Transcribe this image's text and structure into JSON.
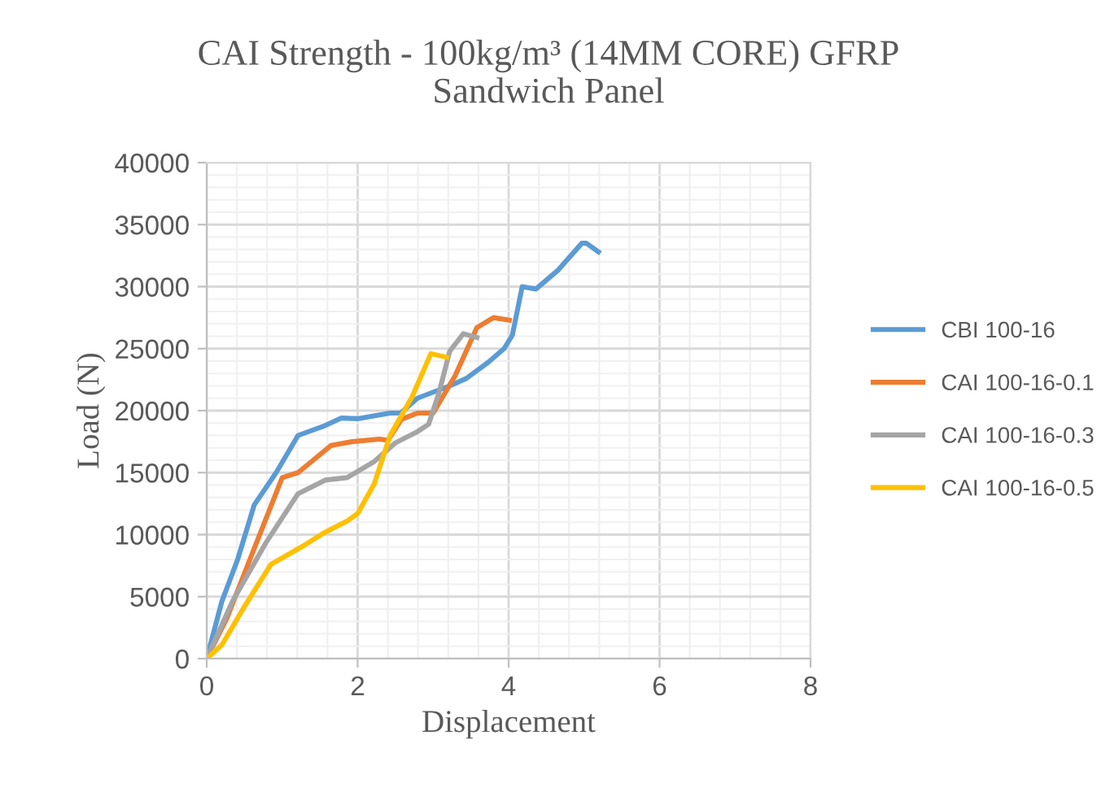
{
  "chart_data": {
    "type": "line",
    "title": "CAI Strength - 100kg/m³ (14MM CORE) GFRP\nSandwich Panel",
    "xlabel": "Displacement",
    "ylabel": "Load (N)",
    "xlim": [
      0,
      8
    ],
    "xticks": [
      0,
      2,
      4,
      6,
      8
    ],
    "ylim": [
      0,
      40000
    ],
    "yticks": [
      0,
      5000,
      10000,
      15000,
      20000,
      25000,
      30000,
      35000,
      40000
    ],
    "grid": true,
    "legend": "right",
    "marker": "none",
    "line_style": "solid",
    "series": [
      {
        "name": "CBI 100-16",
        "color": "#5b9bd5",
        "x": [
          0,
          0.2,
          0.41,
          0.63,
          0.92,
          1.21,
          1.57,
          1.78,
          2.0,
          2.43,
          2.57,
          2.79,
          3.22,
          3.44,
          3.73,
          3.94,
          4.05,
          4.18,
          4.36,
          4.65,
          4.97,
          5.03,
          5.19
        ],
        "values": [
          0,
          4600,
          8000,
          12400,
          15000,
          18000,
          18800,
          19400,
          19350,
          19800,
          19800,
          21000,
          22000,
          22600,
          23900,
          25000,
          26100,
          30000,
          29800,
          31300,
          33500,
          33500,
          32800
        ]
      },
      {
        "name": "CAI 100-16-0.1",
        "color": "#ed7d31",
        "x": [
          0,
          0.27,
          0.63,
          1.0,
          1.21,
          1.65,
          1.93,
          2.29,
          2.4,
          2.58,
          2.79,
          3.0,
          3.29,
          3.58,
          3.8,
          4.01
        ],
        "values": [
          0,
          3300,
          8900,
          14600,
          15000,
          17200,
          17500,
          17700,
          17600,
          19300,
          19800,
          19800,
          22800,
          26700,
          27500,
          27300
        ]
      },
      {
        "name": "CAI 100-16-0.3",
        "color": "#a5a5a5",
        "x": [
          0,
          0.34,
          0.78,
          1.21,
          1.57,
          1.86,
          2.22,
          2.5,
          2.79,
          2.94,
          3.08,
          3.22,
          3.4,
          3.58
        ],
        "values": [
          0,
          4600,
          9300,
          13300,
          14400,
          14600,
          15900,
          17400,
          18300,
          18900,
          21500,
          24800,
          26200,
          25900
        ]
      },
      {
        "name": "CAI 100-16-0.5",
        "color": "#ffc000",
        "x": [
          0,
          0.2,
          0.49,
          0.85,
          1.28,
          1.57,
          1.86,
          2.0,
          2.22,
          2.43,
          2.72,
          2.97,
          3.18
        ],
        "values": [
          0,
          1100,
          4100,
          7600,
          9100,
          10200,
          11100,
          11700,
          14100,
          18000,
          21100,
          24600,
          24300
        ]
      }
    ]
  }
}
